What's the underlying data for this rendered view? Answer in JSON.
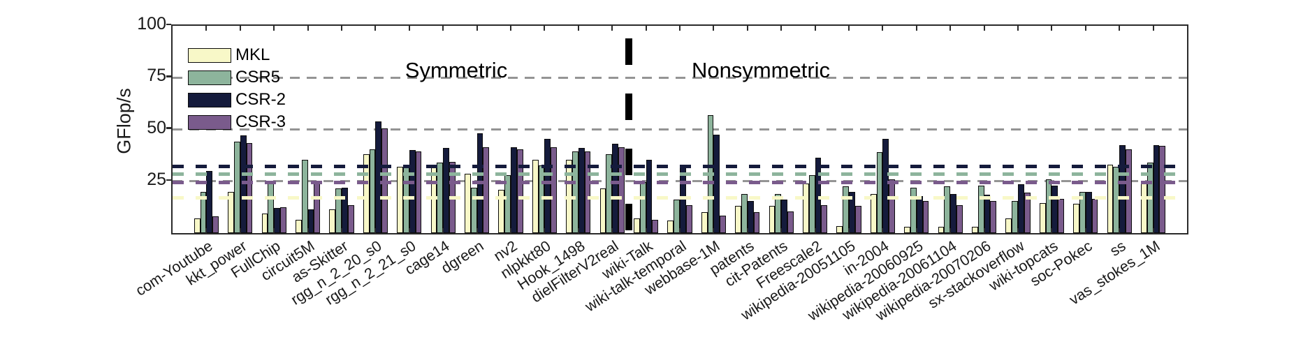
{
  "chart_data": {
    "type": "bar",
    "ylabel": "GFlop/s",
    "ylim": [
      0,
      100
    ],
    "yticks": [
      25,
      50,
      75,
      100
    ],
    "gridlines_y": [
      25,
      50,
      75
    ],
    "legend_position": "upper-left-inside",
    "grid": true,
    "categories": [
      "com-Youtube",
      "kkt_power",
      "FullChip",
      "circuit5M",
      "as-Skitter",
      "rgg_n_2_20_s0",
      "rgg_n_2_21_s0",
      "cage14",
      "dgreen",
      "nv2",
      "nlpkkt80",
      "Hook_1498",
      "dielFilterV2real",
      "wiki-Talk",
      "wiki-talk-temporal",
      "webbase-1M",
      "patents",
      "cit-Patents",
      "Freescale2",
      "wikipedia-20051105",
      "in-2004",
      "wikipedia-20060925",
      "wikipedia-20061104",
      "wikipedia-20070206",
      "sx-stackoverflow",
      "wiki-topcats",
      "soc-Pokec",
      "ss",
      "vas_stokes_1M"
    ],
    "series": [
      {
        "name": "MKL",
        "color": "#f8f8c8",
        "mean_line": 17,
        "values": [
          7,
          20,
          9.5,
          6.5,
          11.5,
          38,
          32,
          31.5,
          28.5,
          21,
          35.5,
          35.5,
          21.5,
          7,
          6,
          10,
          13,
          13,
          24,
          3.5,
          19,
          3,
          3,
          3,
          7,
          14.5,
          14,
          33,
          24
        ]
      },
      {
        "name": "CSR5",
        "color": "#8db49c",
        "mean_line": 28.5,
        "values": [
          20,
          44,
          25,
          35.5,
          21.5,
          40.5,
          33,
          34,
          22,
          28,
          32.5,
          39.5,
          38,
          24.5,
          16,
          57,
          19,
          19,
          28,
          22.5,
          39,
          22,
          22.5,
          23,
          15.5,
          26,
          20,
          32,
          34
        ]
      },
      {
        "name": "CSR-2",
        "color": "#151b3c",
        "mean_line": 32,
        "values": [
          30,
          47,
          12,
          11.5,
          22,
          54,
          40,
          41,
          48,
          41.5,
          45.5,
          41,
          43,
          35.5,
          33,
          47.5,
          15.5,
          16,
          36.5,
          20,
          45.5,
          18,
          19,
          18.5,
          23.5,
          23,
          20,
          42.5,
          42.5
        ]
      },
      {
        "name": "CSR-3",
        "color": "#7a5b8c",
        "mean_line": 24.5,
        "values": [
          8,
          43.5,
          12.5,
          25,
          13.5,
          50.5,
          39.5,
          34.5,
          41.5,
          40.5,
          41.5,
          39.5,
          41.5,
          6.5,
          13.5,
          8.5,
          10,
          10.5,
          13.5,
          13,
          26,
          15.5,
          13.5,
          15.5,
          19.5,
          16.5,
          16.5,
          40.5,
          42
        ]
      }
    ],
    "annotations": [
      {
        "text": "Symmetric"
      },
      {
        "text": "Nonsymmetric"
      }
    ],
    "separator_between": [
      "dielFilterV2real",
      "wiki-Talk"
    ],
    "gridline_color": "#949494",
    "axis_color": "#2a2a2a",
    "separator_color": "#000000"
  }
}
